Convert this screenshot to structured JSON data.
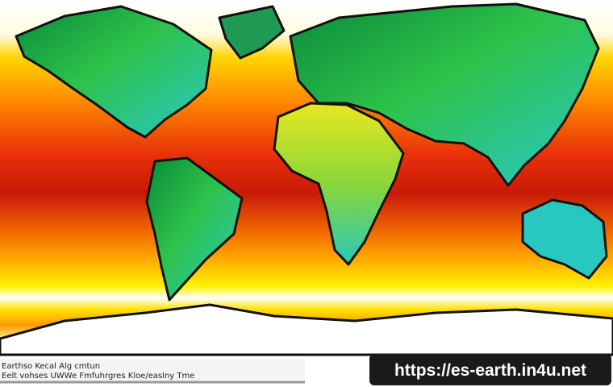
{
  "caption": {
    "lines": [
      "Earthso Kecal Alg cmtun",
      "Eelt vohses UWWe Fmfuhrgres Kloe/easlny Tme"
    ]
  },
  "watermark": "https://es-earth.in4u.net"
}
